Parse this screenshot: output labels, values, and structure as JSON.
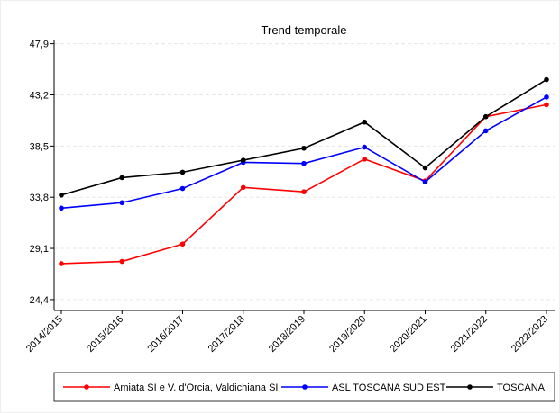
{
  "chart_data": {
    "type": "line",
    "title": "Trend temporale",
    "categories": [
      "2014/2015",
      "2015/2016",
      "2016/2017",
      "2017/2018",
      "2018/2019",
      "2019/2020",
      "2020/2021",
      "2021/2022",
      "2022/2023"
    ],
    "series": [
      {
        "name": "Amiata SI e V. d'Orcia, Valdichiana SI",
        "color": "#ff0000",
        "values": [
          27.7,
          27.9,
          29.5,
          34.7,
          34.3,
          37.3,
          35.3,
          41.2,
          42.3
        ]
      },
      {
        "name": "ASL TOSCANA SUD EST",
        "color": "#0000ff",
        "values": [
          32.8,
          33.3,
          34.6,
          37.0,
          36.9,
          38.4,
          35.2,
          39.9,
          43.0
        ]
      },
      {
        "name": "TOSCANA",
        "color": "#000000",
        "values": [
          34.0,
          35.6,
          36.1,
          37.2,
          38.3,
          40.7,
          36.5,
          41.2,
          44.6
        ]
      }
    ],
    "ylim": [
      23.4,
      48.2
    ],
    "yticks": [
      {
        "value": 24.4,
        "label": "24,4"
      },
      {
        "value": 29.1,
        "label": "29,1"
      },
      {
        "value": 33.8,
        "label": "33,8"
      },
      {
        "value": 38.5,
        "label": "38,5"
      },
      {
        "value": 43.2,
        "label": "43,2"
      },
      {
        "value": 47.9,
        "label": "47,9"
      }
    ],
    "grid": true
  }
}
